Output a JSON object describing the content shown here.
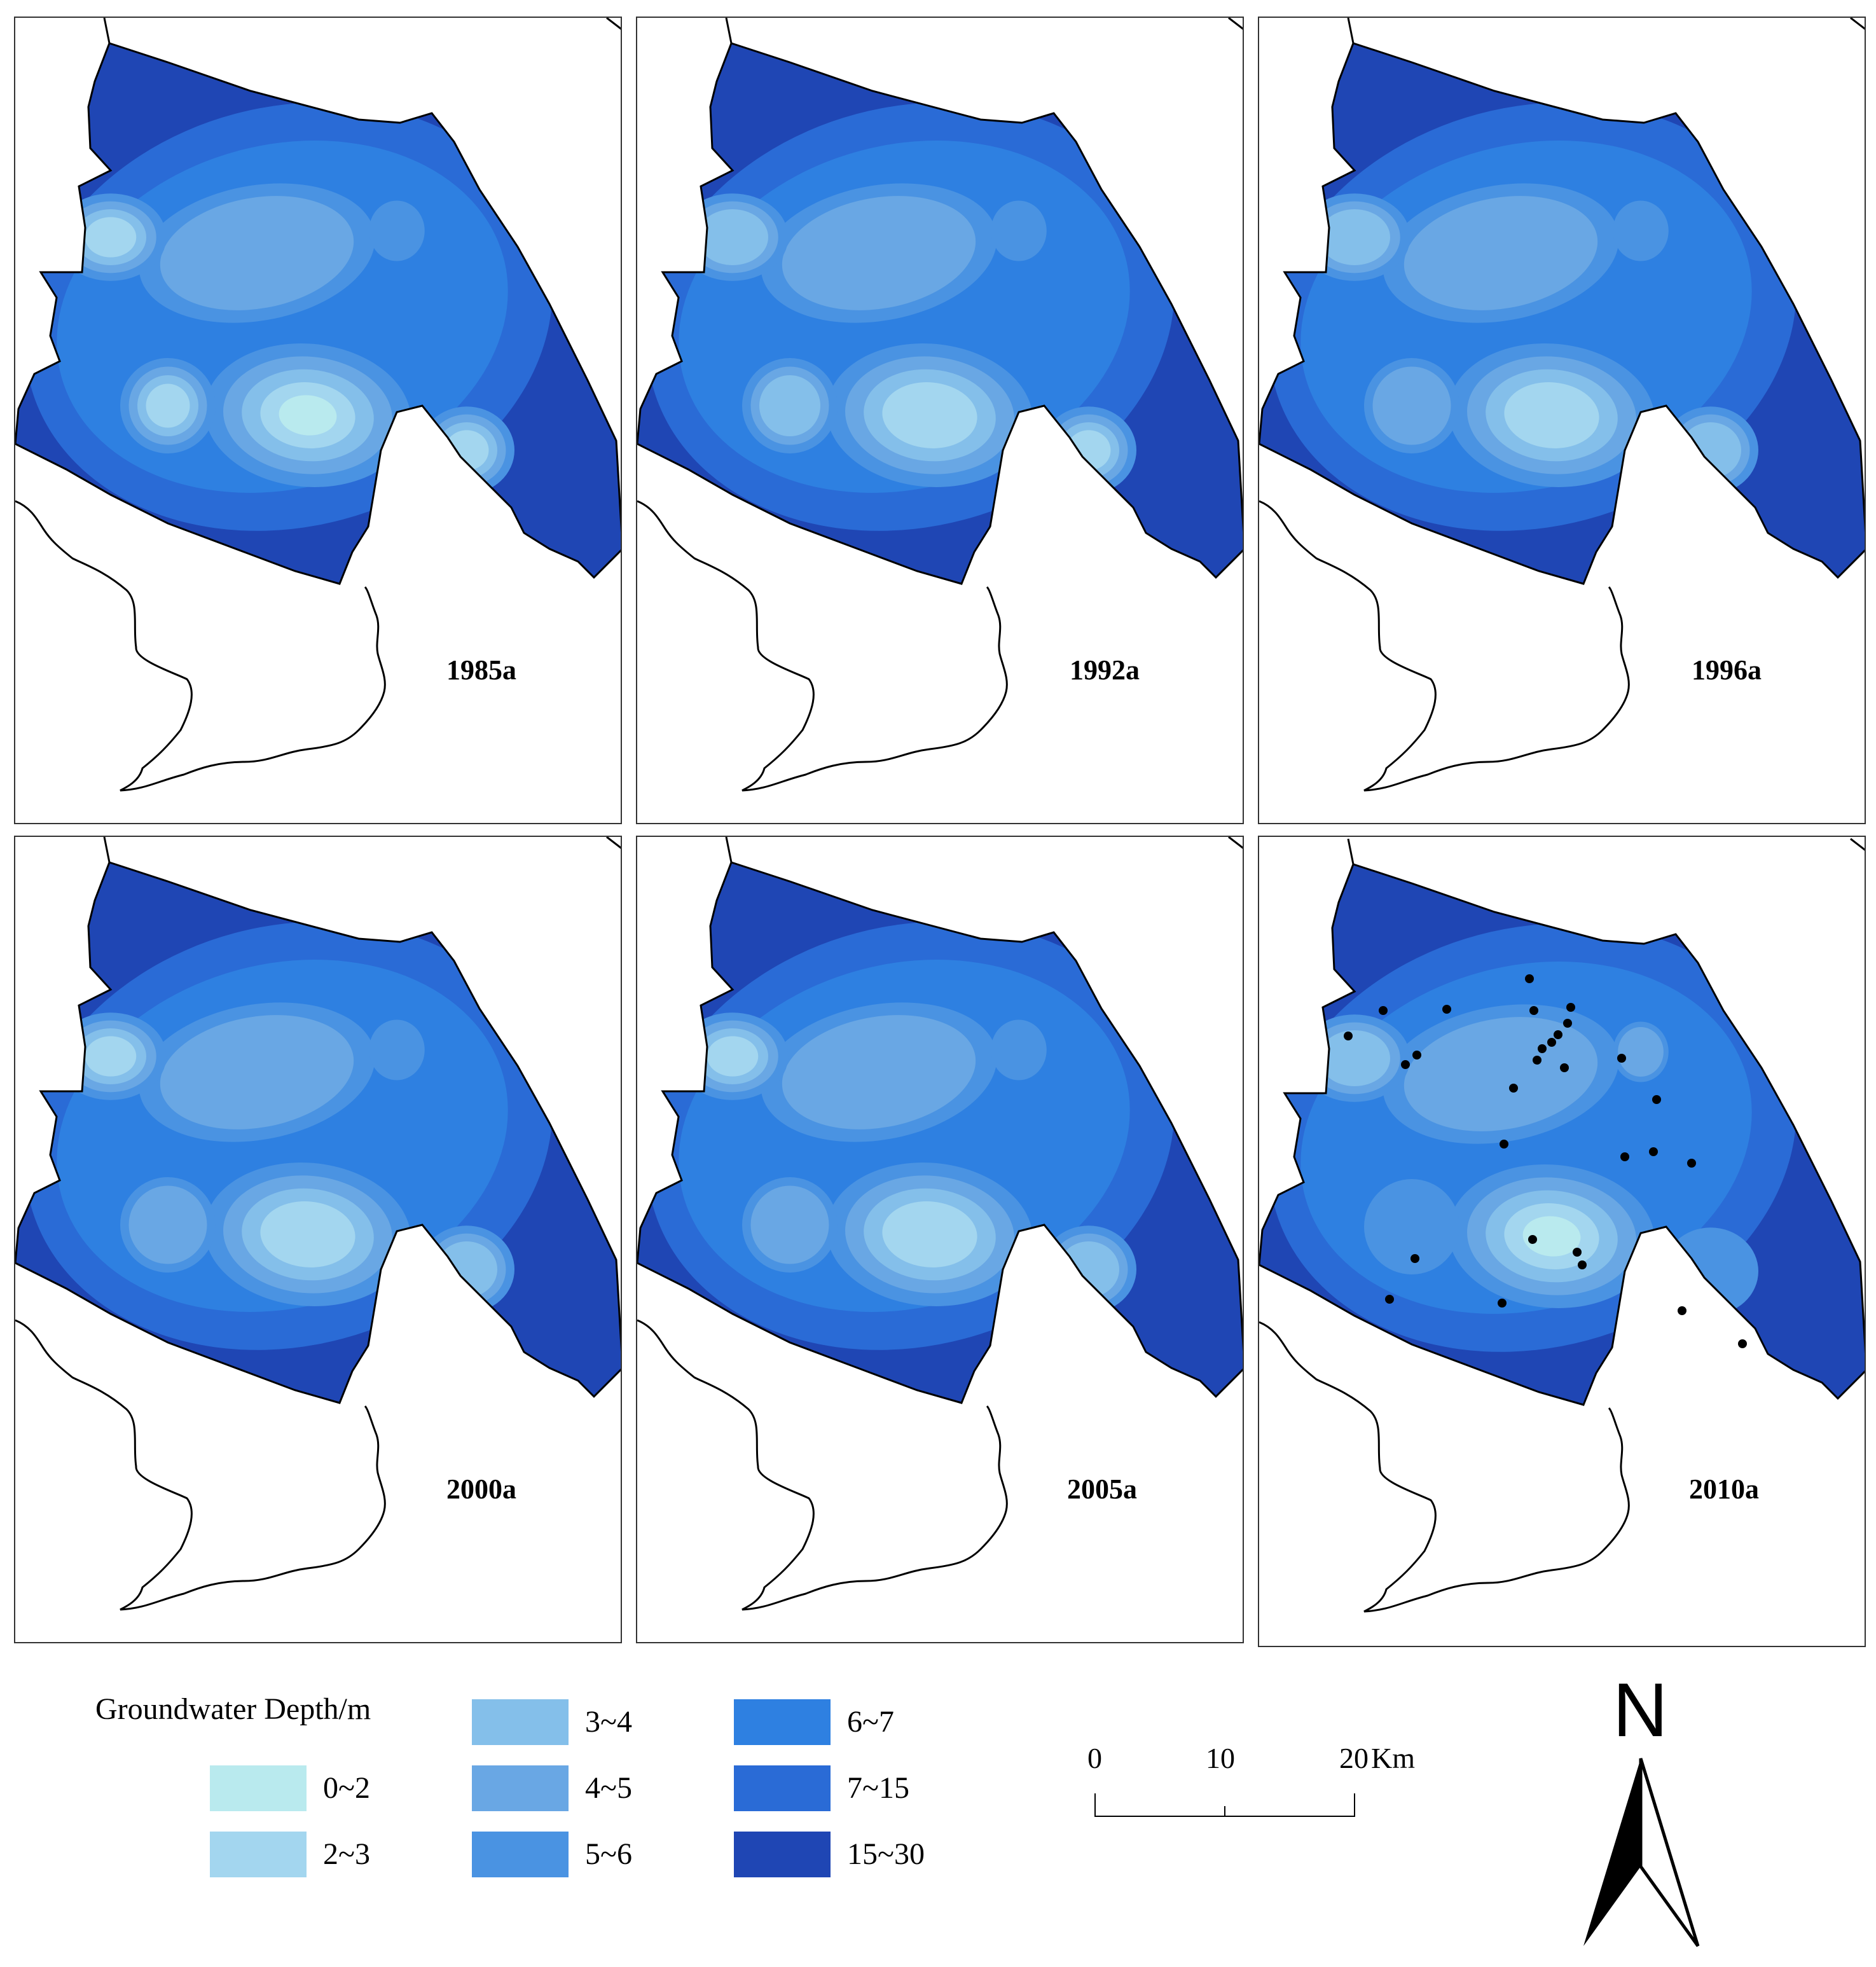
{
  "panels": [
    {
      "year_label": "1985a"
    },
    {
      "year_label": "1992a"
    },
    {
      "year_label": "1996a"
    },
    {
      "year_label": "2000a"
    },
    {
      "year_label": "2005a"
    },
    {
      "year_label": "2010a"
    }
  ],
  "legend": {
    "title": "Groundwater Depth/m",
    "classes": [
      {
        "label": "0~2",
        "color": "#b9eaee"
      },
      {
        "label": "2~3",
        "color": "#a3d6ef"
      },
      {
        "label": "3~4",
        "color": "#84bfea"
      },
      {
        "label": "4~5",
        "color": "#69a7e4"
      },
      {
        "label": "5~6",
        "color": "#4a93e2"
      },
      {
        "label": "6~7",
        "color": "#2e80e1"
      },
      {
        "label": "7~15",
        "color": "#2a6bd6"
      },
      {
        "label": "15~30",
        "color": "#1f46b4"
      }
    ]
  },
  "scale_bar": {
    "labels": [
      "0",
      "10",
      "20"
    ],
    "unit": "Km"
  },
  "north_arrow": {
    "label": "N"
  },
  "well_points_shown_in": "2010a"
}
